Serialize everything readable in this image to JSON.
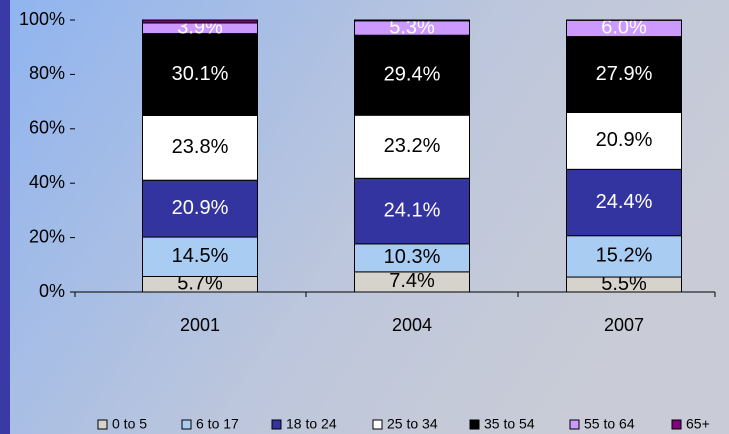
{
  "chart_data": {
    "type": "stacked_bar",
    "categories": [
      "2001",
      "2004",
      "2007"
    ],
    "ylim": [
      0,
      100
    ],
    "yticks": [
      {
        "value": 0,
        "label": "0%"
      },
      {
        "value": 20,
        "label": "20%"
      },
      {
        "value": 40,
        "label": "40%"
      },
      {
        "value": 60,
        "label": "60%"
      },
      {
        "value": 80,
        "label": "80%"
      },
      {
        "value": 100,
        "label": "100%"
      }
    ],
    "legend": "bottom",
    "series": [
      {
        "name": "0 to 5",
        "color": "#d6d3cc",
        "values": [
          5.7,
          7.4,
          5.5
        ],
        "value_labels": [
          "5.7%",
          "7.4%",
          "5.5%"
        ]
      },
      {
        "name": "6 to 17",
        "color": "#a9ccf2",
        "values": [
          14.5,
          10.3,
          15.2
        ],
        "value_labels": [
          "14.5%",
          "10.3%",
          "15.2%"
        ]
      },
      {
        "name": "18 to 24",
        "color": "#3434a0",
        "values": [
          20.9,
          24.1,
          24.4
        ],
        "value_labels": [
          "20.9%",
          "24.1%",
          "24.4%"
        ]
      },
      {
        "name": "25 to 34",
        "color": "#ffffff",
        "values": [
          23.8,
          23.2,
          20.9
        ],
        "value_labels": [
          "23.8%",
          "23.2%",
          "20.9%"
        ]
      },
      {
        "name": "35 to 54",
        "color": "#000000",
        "values": [
          30.1,
          29.4,
          27.9
        ],
        "value_labels": [
          "30.1%",
          "29.4%",
          "27.9%"
        ]
      },
      {
        "name": "55 to 64",
        "color": "#cc99ff",
        "values": [
          3.9,
          5.3,
          6.0
        ],
        "value_labels": [
          "3.9%",
          "5.3%",
          "6.0%"
        ]
      },
      {
        "name": "65+",
        "color": "#800080",
        "values": [
          1.1,
          0.3,
          0.1
        ]
      }
    ]
  }
}
